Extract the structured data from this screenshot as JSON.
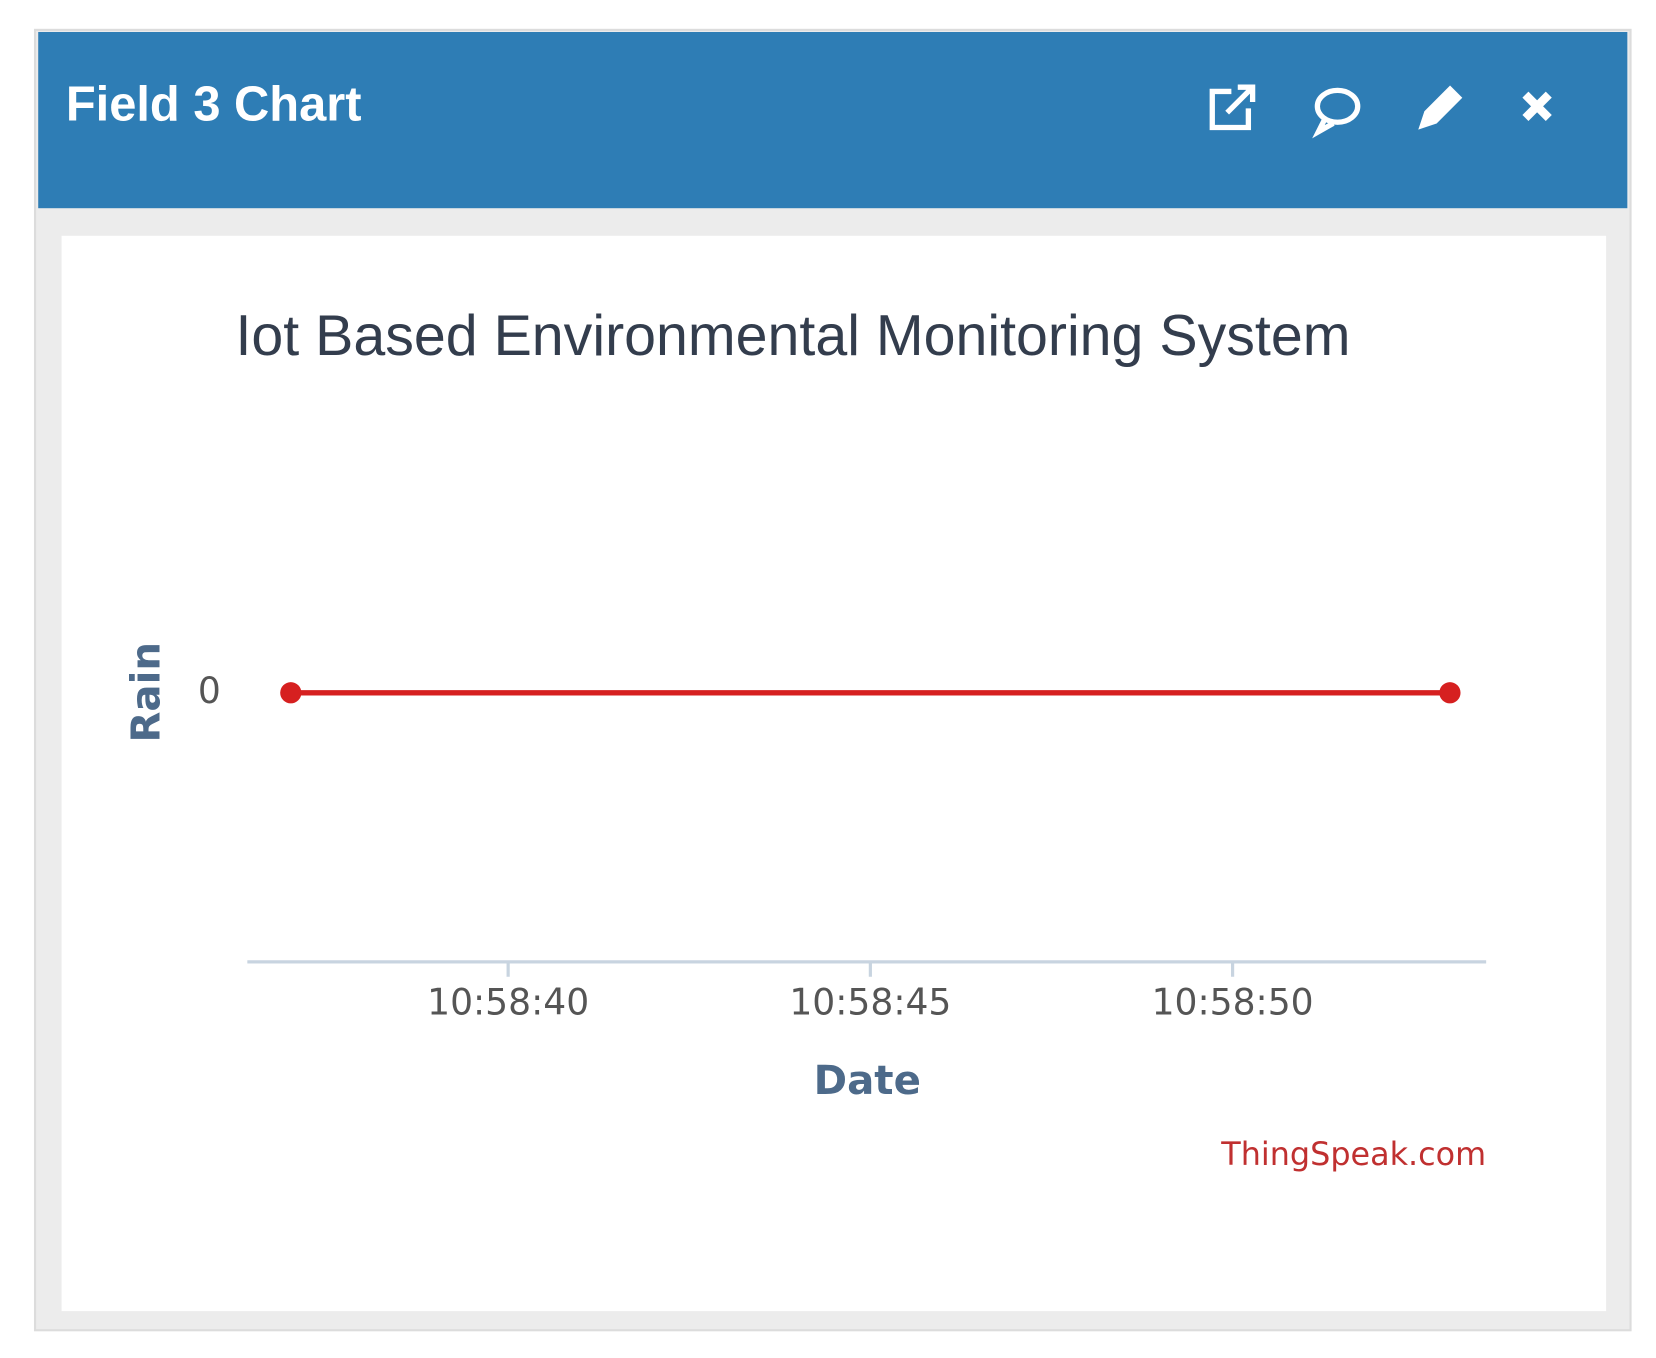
{
  "header": {
    "title": "Field 3 Chart"
  },
  "chart_data": {
    "type": "line",
    "title": "Iot Based Environmental Monitoring System",
    "x_label": "Date",
    "y_label": "Rain",
    "x": [
      "10:58:37",
      "10:58:53"
    ],
    "values": [
      0,
      0
    ],
    "color": "#d62020",
    "xlim": [
      "10:58:36.4",
      "10:58:53.5"
    ],
    "xticks": [
      "10:58:40",
      "10:58:45",
      "10:58:50"
    ],
    "ylim": [
      -1,
      1
    ],
    "yticks": [
      0
    ],
    "credit": "ThingSpeak.com"
  }
}
